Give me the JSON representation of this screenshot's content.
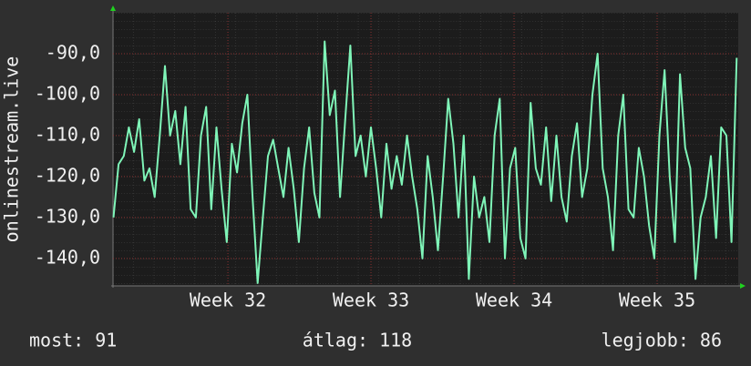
{
  "chart_data": {
    "type": "line",
    "y_label": "onlinestream.live",
    "x": [
      31.2,
      31.236,
      31.272,
      31.308,
      31.344,
      31.38,
      31.416,
      31.452,
      31.488,
      31.524,
      31.56,
      31.596,
      31.632,
      31.668,
      31.704,
      31.74,
      31.776,
      31.812,
      31.848,
      31.884,
      31.92,
      31.956,
      31.992,
      32.028,
      32.064,
      32.1,
      32.136,
      32.172,
      32.208,
      32.244,
      32.28,
      32.316,
      32.352,
      32.388,
      32.424,
      32.46,
      32.496,
      32.532,
      32.568,
      32.604,
      32.64,
      32.676,
      32.712,
      32.748,
      32.784,
      32.82,
      32.856,
      32.892,
      32.928,
      32.964,
      33.0,
      33.036,
      33.072,
      33.108,
      33.144,
      33.18,
      33.216,
      33.252,
      33.288,
      33.324,
      33.36,
      33.396,
      33.432,
      33.468,
      33.504,
      33.54,
      33.576,
      33.612,
      33.648,
      33.684,
      33.72,
      33.756,
      33.792,
      33.828,
      33.864,
      33.9,
      33.936,
      33.972,
      34.008,
      34.044,
      34.08,
      34.116,
      34.152,
      34.188,
      34.224,
      34.26,
      34.296,
      34.332,
      34.368,
      34.404,
      34.44,
      34.476,
      34.512,
      34.548,
      34.584,
      34.62,
      34.656,
      34.692,
      34.728,
      34.764,
      34.8,
      34.836,
      34.872,
      34.908,
      34.944,
      34.98,
      35.016,
      35.052,
      35.088,
      35.124,
      35.16,
      35.196,
      35.232,
      35.268,
      35.304,
      35.34,
      35.376,
      35.412,
      35.448,
      35.484,
      35.52,
      35.556
    ],
    "series": [
      {
        "name": "onlinestream.live",
        "color": "#7ff5b8",
        "values": [
          -130,
          -117,
          -115,
          -108,
          -114,
          -106,
          -121,
          -118,
          -125,
          -110,
          -93,
          -110,
          -104,
          -117,
          -103,
          -128,
          -130,
          -110,
          -103,
          -128,
          -108,
          -123,
          -136,
          -112,
          -119,
          -107,
          -100,
          -125,
          -146,
          -130,
          -115,
          -111,
          -118,
          -125,
          -113,
          -123,
          -136,
          -118,
          -108,
          -124,
          -130,
          -87,
          -105,
          -99,
          -125,
          -106,
          -88,
          -115,
          -110,
          -120,
          -108,
          -118,
          -130,
          -112,
          -123,
          -115,
          -122,
          -110,
          -120,
          -128,
          -140,
          -115,
          -125,
          -138,
          -120,
          -101,
          -112,
          -130,
          -110,
          -145,
          -120,
          -130,
          -125,
          -136,
          -110,
          -101,
          -140,
          -118,
          -113,
          -135,
          -140,
          -102,
          -118,
          -122,
          -108,
          -126,
          -110,
          -125,
          -131,
          -115,
          -107,
          -125,
          -118,
          -100,
          -90,
          -118,
          -125,
          -138,
          -110,
          -100,
          -128,
          -130,
          -113,
          -120,
          -132,
          -140,
          -110,
          -94,
          -120,
          -136,
          -95,
          -113,
          -118,
          -145,
          -130,
          -125,
          -115,
          -135,
          -108,
          -110,
          -136,
          -91
        ]
      }
    ],
    "xlim": [
      31.197,
      35.567
    ],
    "xticks": [
      {
        "value": 32,
        "label": "Week 32"
      },
      {
        "value": 33,
        "label": "Week 33"
      },
      {
        "value": 34,
        "label": "Week 34"
      },
      {
        "value": 35,
        "label": "Week 35"
      }
    ],
    "ylim": [
      -146.7,
      -80.0
    ],
    "yticks": [
      {
        "value": -90,
        "label": "-90,0"
      },
      {
        "value": -100,
        "label": "-100,0"
      },
      {
        "value": -110,
        "label": "-110,0"
      },
      {
        "value": -120,
        "label": "-120,0"
      },
      {
        "value": -130,
        "label": "-130,0"
      },
      {
        "value": -140,
        "label": "-140,0"
      }
    ],
    "grid": true
  },
  "stats": [
    "most: 91",
    "átlag: 118",
    "legjobb: 86"
  ]
}
